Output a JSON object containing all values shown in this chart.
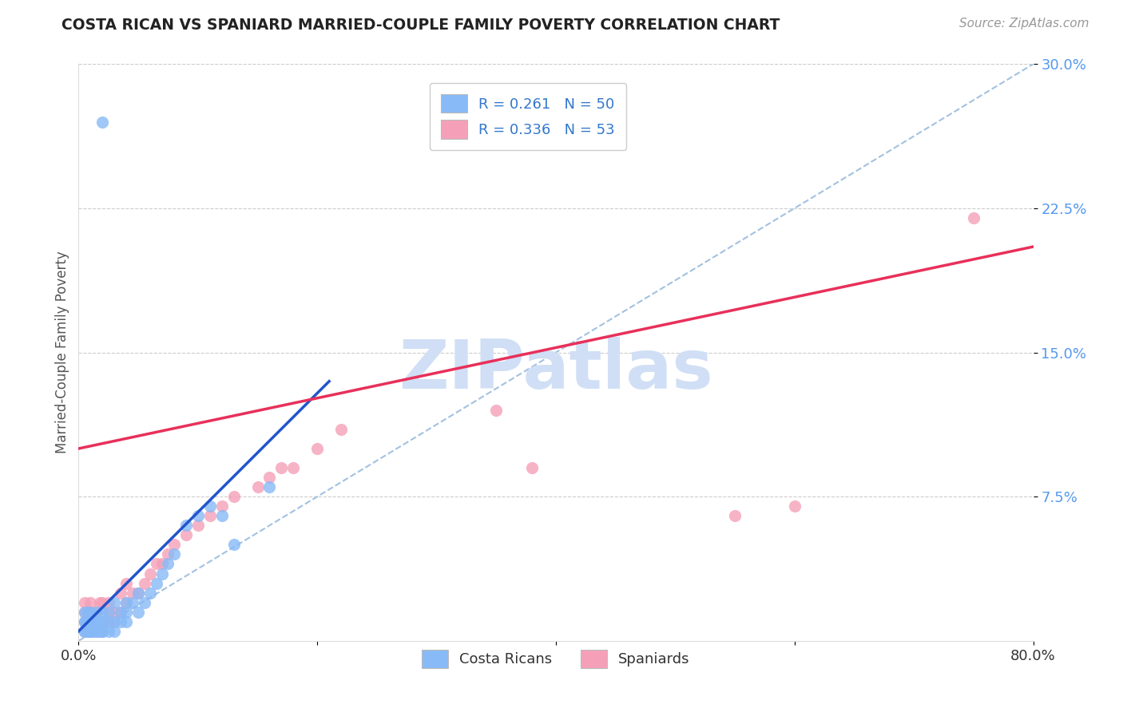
{
  "title": "COSTA RICAN VS SPANIARD MARRIED-COUPLE FAMILY POVERTY CORRELATION CHART",
  "source": "Source: ZipAtlas.com",
  "ylabel": "Married-Couple Family Poverty",
  "xlim": [
    0.0,
    0.8
  ],
  "ylim": [
    0.0,
    0.3
  ],
  "cr_color": "#87baf7",
  "sp_color": "#f5a0b8",
  "cr_line_color": "#2255cc",
  "sp_line_color": "#e8305a",
  "ref_line_color": "#99bbdd",
  "background_color": "#ffffff",
  "grid_color": "#cccccc",
  "tick_color_y": "#5599ee",
  "tick_color_x": "#333333",
  "watermark_color": "#d0dff5",
  "cr_N": 50,
  "sp_N": 53,
  "cr_R": 0.261,
  "sp_R": 0.336,
  "cr_x": [
    0.005,
    0.005,
    0.005,
    0.005,
    0.005,
    0.008,
    0.008,
    0.008,
    0.01,
    0.01,
    0.01,
    0.01,
    0.012,
    0.012,
    0.015,
    0.015,
    0.015,
    0.018,
    0.018,
    0.02,
    0.02,
    0.02,
    0.02,
    0.025,
    0.025,
    0.025,
    0.03,
    0.03,
    0.03,
    0.035,
    0.035,
    0.04,
    0.04,
    0.04,
    0.045,
    0.05,
    0.05,
    0.055,
    0.06,
    0.065,
    0.07,
    0.075,
    0.08,
    0.09,
    0.1,
    0.11,
    0.12,
    0.13,
    0.16,
    0.02
  ],
  "cr_y": [
    0.005,
    0.005,
    0.01,
    0.01,
    0.015,
    0.005,
    0.01,
    0.015,
    0.005,
    0.005,
    0.01,
    0.015,
    0.005,
    0.01,
    0.005,
    0.01,
    0.015,
    0.005,
    0.01,
    0.005,
    0.005,
    0.01,
    0.015,
    0.005,
    0.01,
    0.015,
    0.005,
    0.01,
    0.02,
    0.01,
    0.015,
    0.01,
    0.015,
    0.02,
    0.02,
    0.015,
    0.025,
    0.02,
    0.025,
    0.03,
    0.035,
    0.04,
    0.045,
    0.06,
    0.065,
    0.07,
    0.065,
    0.05,
    0.08,
    0.27
  ],
  "sp_x": [
    0.005,
    0.005,
    0.005,
    0.005,
    0.008,
    0.008,
    0.008,
    0.01,
    0.01,
    0.01,
    0.01,
    0.012,
    0.012,
    0.015,
    0.015,
    0.018,
    0.018,
    0.02,
    0.02,
    0.02,
    0.025,
    0.025,
    0.025,
    0.03,
    0.03,
    0.035,
    0.035,
    0.04,
    0.04,
    0.045,
    0.05,
    0.055,
    0.06,
    0.065,
    0.07,
    0.075,
    0.08,
    0.09,
    0.1,
    0.11,
    0.12,
    0.13,
    0.15,
    0.16,
    0.17,
    0.18,
    0.2,
    0.22,
    0.35,
    0.38,
    0.55,
    0.6,
    0.75
  ],
  "sp_y": [
    0.005,
    0.01,
    0.015,
    0.02,
    0.005,
    0.01,
    0.015,
    0.005,
    0.01,
    0.015,
    0.02,
    0.005,
    0.015,
    0.005,
    0.015,
    0.01,
    0.02,
    0.005,
    0.01,
    0.02,
    0.01,
    0.015,
    0.02,
    0.01,
    0.015,
    0.015,
    0.025,
    0.02,
    0.03,
    0.025,
    0.025,
    0.03,
    0.035,
    0.04,
    0.04,
    0.045,
    0.05,
    0.055,
    0.06,
    0.065,
    0.07,
    0.075,
    0.08,
    0.085,
    0.09,
    0.09,
    0.1,
    0.11,
    0.12,
    0.09,
    0.065,
    0.07,
    0.22
  ],
  "cr_line_x0": 0.0,
  "cr_line_x1": 0.21,
  "cr_line_y0": 0.005,
  "cr_line_y1": 0.135,
  "sp_line_x0": 0.0,
  "sp_line_x1": 0.8,
  "sp_line_y0": 0.1,
  "sp_line_y1": 0.205,
  "ref_line_x0": 0.0,
  "ref_line_x1": 0.8,
  "ref_line_y0": 0.0,
  "ref_line_y1": 0.3
}
